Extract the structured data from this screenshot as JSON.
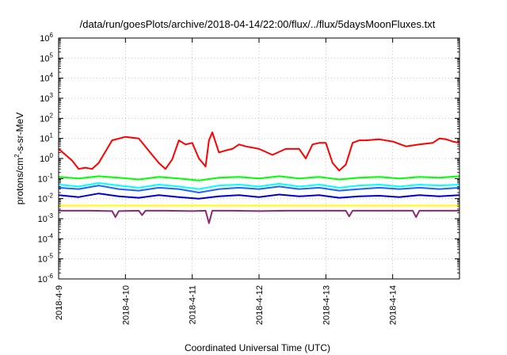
{
  "chart_data": {
    "type": "line",
    "title": "/data/run/goesPlots/archive/2018-04-14/22:00/flux/../flux/5daysMoonFluxes.txt",
    "xlabel": "Coordinated Universal Time (UTC)",
    "ylabel_parts": {
      "base": "protons/cm",
      "sup": "2",
      "rest": "-s-sr-MeV"
    },
    "y_scale": "log",
    "ylim": [
      1e-06,
      1000000
    ],
    "xlim": [
      "2018-04-09",
      "2018-04-15"
    ],
    "grid": true,
    "x_ticks": [
      "2018-4-9",
      "2018-4-10",
      "2018-4-11",
      "2018-4-12",
      "2018-4-13",
      "2018-4-14"
    ],
    "y_ticks": [
      {
        "value": 1e-06,
        "mant": "10",
        "exp": "-6"
      },
      {
        "value": 1e-05,
        "mant": "10",
        "exp": "-5"
      },
      {
        "value": 0.0001,
        "mant": "10",
        "exp": "-4"
      },
      {
        "value": 0.001,
        "mant": "10",
        "exp": "-3"
      },
      {
        "value": 0.01,
        "mant": "10",
        "exp": "-2"
      },
      {
        "value": 0.1,
        "mant": "10",
        "exp": "-1"
      },
      {
        "value": 1,
        "mant": "10",
        "exp": "0"
      },
      {
        "value": 10,
        "mant": "10",
        "exp": "1"
      },
      {
        "value": 100,
        "mant": "10",
        "exp": "2"
      },
      {
        "value": 1000,
        "mant": "10",
        "exp": "3"
      },
      {
        "value": 10000,
        "mant": "10",
        "exp": "4"
      },
      {
        "value": 100000,
        "mant": "10",
        "exp": "5"
      },
      {
        "value": 1000000,
        "mant": "10",
        "exp": "6"
      }
    ],
    "series": [
      {
        "color": "#ff0000",
        "x": [
          0.0,
          0.2,
          0.3,
          0.4,
          0.5,
          0.6,
          0.8,
          1.0,
          1.2,
          1.4,
          1.5,
          1.6,
          1.7,
          1.8,
          1.9,
          2.0,
          2.1,
          2.2,
          2.25,
          2.3,
          2.4,
          2.5,
          2.6,
          2.7,
          2.8,
          3.0,
          3.2,
          3.4,
          3.6,
          3.7,
          3.8,
          3.9,
          4.0,
          4.1,
          4.2,
          4.3,
          4.4,
          4.5,
          4.6,
          4.8,
          5.0,
          5.2,
          5.4,
          5.6,
          5.7,
          5.8,
          5.9,
          6.0
        ],
        "y": [
          3,
          0.8,
          0.3,
          0.35,
          0.3,
          0.6,
          8,
          12,
          10,
          1.5,
          0.6,
          0.3,
          0.9,
          8,
          5,
          6,
          1,
          0.4,
          8,
          20,
          2,
          2.5,
          3,
          5,
          4,
          3,
          1.5,
          3,
          3,
          1,
          5,
          6,
          6,
          0.6,
          0.25,
          0.5,
          6,
          8,
          8,
          9,
          7,
          4,
          5,
          6,
          10,
          9,
          7,
          6
        ]
      },
      {
        "color": "#00ff00",
        "x": [
          0.0,
          0.3,
          0.6,
          0.9,
          1.2,
          1.5,
          1.8,
          2.1,
          2.4,
          2.7,
          3.0,
          3.3,
          3.6,
          3.9,
          4.2,
          4.5,
          4.8,
          5.1,
          5.4,
          5.7,
          6.0
        ],
        "y": [
          0.12,
          0.1,
          0.13,
          0.11,
          0.09,
          0.12,
          0.1,
          0.08,
          0.11,
          0.12,
          0.1,
          0.13,
          0.1,
          0.12,
          0.09,
          0.11,
          0.12,
          0.1,
          0.12,
          0.11,
          0.13
        ]
      },
      {
        "color": "#00ffff",
        "x": [
          0.0,
          0.3,
          0.6,
          0.9,
          1.2,
          1.5,
          1.8,
          2.1,
          2.4,
          2.7,
          3.0,
          3.3,
          3.6,
          3.9,
          4.2,
          4.5,
          4.8,
          5.1,
          5.4,
          5.7,
          6.0
        ],
        "y": [
          0.05,
          0.04,
          0.06,
          0.045,
          0.035,
          0.05,
          0.04,
          0.03,
          0.045,
          0.05,
          0.04,
          0.055,
          0.04,
          0.05,
          0.035,
          0.045,
          0.05,
          0.04,
          0.05,
          0.045,
          0.05
        ]
      },
      {
        "color": "#1e64ff",
        "x": [
          0.0,
          0.3,
          0.6,
          0.9,
          1.2,
          1.5,
          1.8,
          2.1,
          2.4,
          2.7,
          3.0,
          3.3,
          3.6,
          3.9,
          4.2,
          4.5,
          4.8,
          5.1,
          5.4,
          5.7,
          6.0
        ],
        "y": [
          0.035,
          0.03,
          0.045,
          0.03,
          0.025,
          0.035,
          0.03,
          0.02,
          0.03,
          0.035,
          0.03,
          0.04,
          0.03,
          0.035,
          0.025,
          0.03,
          0.035,
          0.03,
          0.035,
          0.03,
          0.035
        ]
      },
      {
        "color": "#0000cd",
        "x": [
          0.0,
          0.3,
          0.6,
          0.9,
          1.2,
          1.5,
          1.8,
          2.1,
          2.4,
          2.7,
          3.0,
          3.3,
          3.6,
          3.9,
          4.2,
          4.5,
          4.8,
          5.1,
          5.4,
          5.7,
          6.0
        ],
        "y": [
          0.015,
          0.012,
          0.018,
          0.013,
          0.011,
          0.015,
          0.012,
          0.01,
          0.013,
          0.015,
          0.012,
          0.016,
          0.013,
          0.015,
          0.011,
          0.013,
          0.014,
          0.012,
          0.015,
          0.013,
          0.015
        ]
      },
      {
        "color": "#ffff00",
        "x": [
          0.0,
          1.0,
          2.0,
          3.0,
          4.0,
          5.0,
          6.0
        ],
        "y": [
          0.0045,
          0.0045,
          0.0045,
          0.0045,
          0.0045,
          0.0045,
          0.0045
        ]
      },
      {
        "color": "#8b2a70",
        "x": [
          0.0,
          0.5,
          0.8,
          0.85,
          0.9,
          1.2,
          1.25,
          1.3,
          1.6,
          2.0,
          2.2,
          2.25,
          2.3,
          2.6,
          3.0,
          3.4,
          4.0,
          4.3,
          4.35,
          4.4,
          5.0,
          5.3,
          5.35,
          5.4,
          6.0
        ],
        "y": [
          0.0025,
          0.0025,
          0.0024,
          0.0012,
          0.0024,
          0.0025,
          0.0015,
          0.0025,
          0.0025,
          0.0024,
          0.0025,
          0.0006,
          0.0025,
          0.0025,
          0.0024,
          0.0025,
          0.0025,
          0.0025,
          0.0013,
          0.0025,
          0.0025,
          0.0025,
          0.0012,
          0.0025,
          0.0025
        ]
      }
    ]
  }
}
